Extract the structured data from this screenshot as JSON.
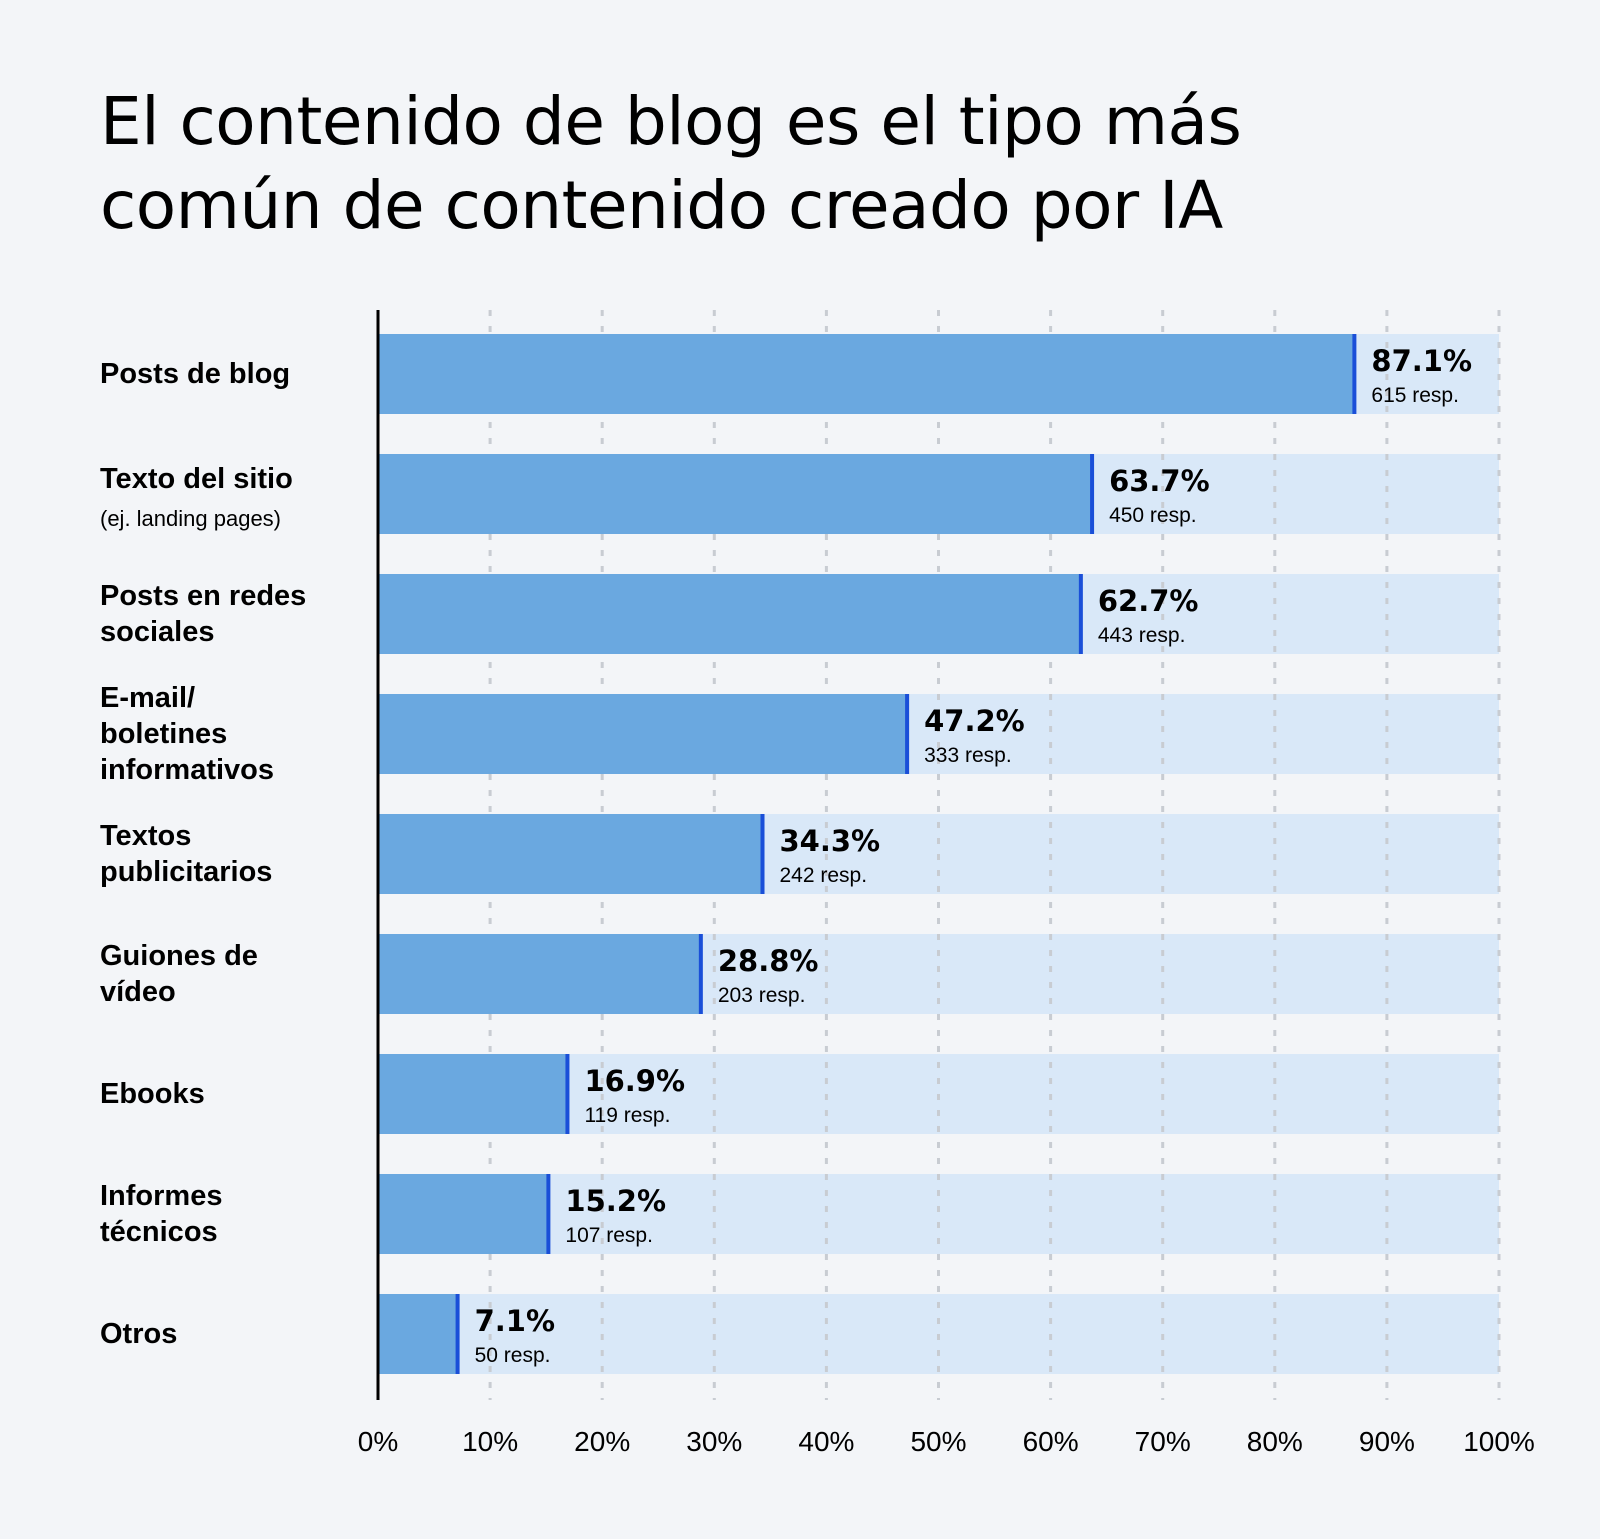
{
  "title": "El contenido de blog es el tipo más común de contenido creado por IA",
  "chart_data": {
    "type": "bar",
    "orientation": "horizontal",
    "title": "El contenido de blog es el tipo más común de contenido creado por IA",
    "xlabel": "",
    "ylabel": "",
    "xlim": [
      0,
      100
    ],
    "grid": "vertical dotted",
    "categories": [
      {
        "label": [
          "Posts de blog"
        ],
        "sublabel": ""
      },
      {
        "label": [
          "Texto del sitio"
        ],
        "sublabel": "(ej. landing pages)"
      },
      {
        "label": [
          "Posts en redes",
          "sociales"
        ],
        "sublabel": ""
      },
      {
        "label": [
          "E-mail/",
          "boletines",
          "informativos"
        ],
        "sublabel": ""
      },
      {
        "label": [
          "Textos",
          "publicitarios"
        ],
        "sublabel": ""
      },
      {
        "label": [
          "Guiones de",
          "vídeo"
        ],
        "sublabel": ""
      },
      {
        "label": [
          "Ebooks"
        ],
        "sublabel": ""
      },
      {
        "label": [
          "Informes",
          "técnicos"
        ],
        "sublabel": ""
      },
      {
        "label": [
          "Otros"
        ],
        "sublabel": ""
      }
    ],
    "values": [
      87.1,
      63.7,
      62.7,
      47.2,
      34.3,
      28.8,
      16.9,
      15.2,
      7.1
    ],
    "value_labels": [
      "87.1%",
      "63.7%",
      "62.7%",
      "47.2%",
      "34.3%",
      "28.8%",
      "16.9%",
      "15.2%",
      "7.1%"
    ],
    "responses": [
      "615 resp.",
      "450 resp.",
      "443 resp.",
      "333 resp.",
      "242 resp.",
      "203 resp.",
      "119 resp.",
      "107 resp.",
      "50 resp."
    ],
    "xticks": [
      "0%",
      "10%",
      "20%",
      "30%",
      "40%",
      "50%",
      "60%",
      "70%",
      "80%",
      "90%",
      "100%"
    ],
    "colors": {
      "bar": "#6aa8e0",
      "track": "#d9e8f8",
      "bar_edge": "#1a4fd8",
      "grid": "#c8ccd2",
      "axis": "#000000"
    }
  }
}
